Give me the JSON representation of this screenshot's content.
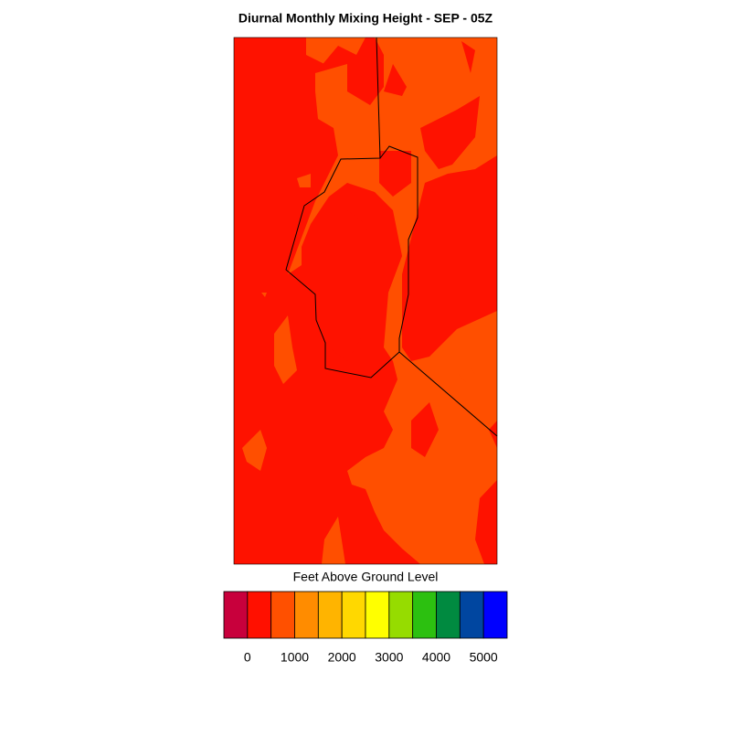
{
  "title": "Diurnal Monthly Mixing Height - SEP - 05Z",
  "colorbar": {
    "label": "Feet Above Ground Level",
    "colors": [
      "#c8003c",
      "#ff1000",
      "#ff5000",
      "#ff8c00",
      "#ffb400",
      "#ffd800",
      "#ffff00",
      "#96dc00",
      "#2cc010",
      "#008a40",
      "#0046a0",
      "#0000ff"
    ],
    "ticks": [
      0,
      1000,
      2000,
      3000,
      4000,
      5000
    ]
  }
}
